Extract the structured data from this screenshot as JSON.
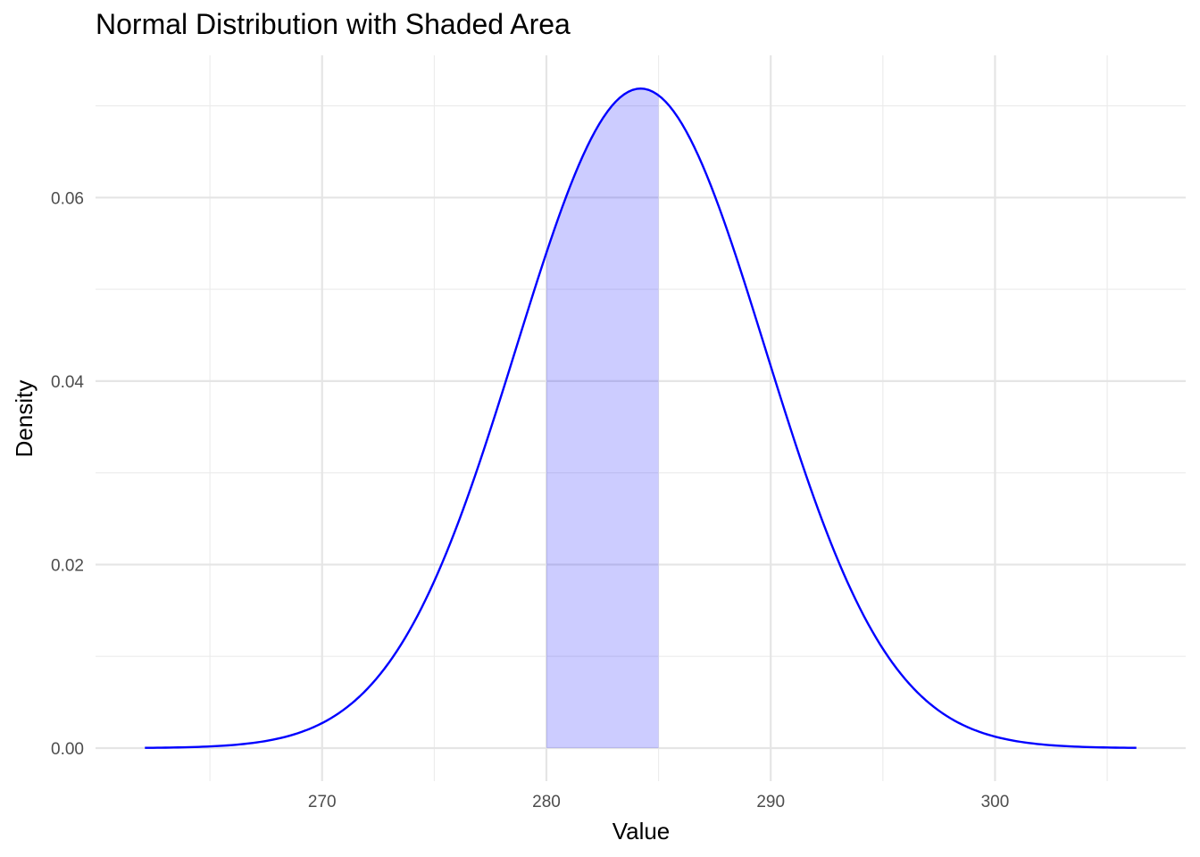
{
  "chart_data": {
    "type": "area",
    "title": "Normal Distribution with Shaded Area",
    "xlabel": "Value",
    "ylabel": "Density",
    "distribution": {
      "mean": 284.2,
      "sd": 5.55
    },
    "x_range": [
      262.1,
      306.3
    ],
    "xlim": [
      259.9,
      308.5
    ],
    "ylim": [
      -0.0036,
      0.0755
    ],
    "x_ticks": [
      270,
      280,
      290,
      300
    ],
    "x_tick_labels": [
      "270",
      "280",
      "290",
      "300"
    ],
    "x_minor_ticks": [
      265,
      275,
      285,
      295,
      305
    ],
    "y_ticks": [
      0,
      0.02,
      0.04,
      0.06
    ],
    "y_tick_labels": [
      "0.00",
      "0.02",
      "0.04",
      "0.06"
    ],
    "y_minor_ticks": [
      0.01,
      0.03,
      0.05,
      0.07
    ],
    "shaded_interval": [
      280,
      285
    ],
    "line_color": "#0000ff",
    "fill_color": "#0000ff",
    "fill_opacity": 0.2,
    "grid": true,
    "legend": "none"
  }
}
